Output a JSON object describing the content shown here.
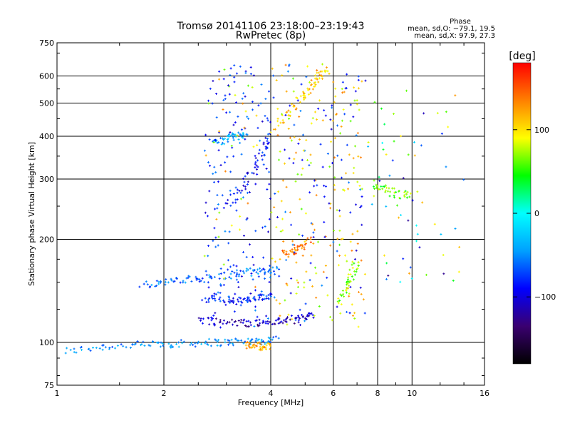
{
  "chart_data": {
    "type": "scatter",
    "title": "Tromsø 20141106 23:18:00–23:19:43",
    "subtitle": "RwPretec (8p)",
    "xlabel": "Frequency [MHz]",
    "ylabel": "Stationary phase Virtual Height [km]",
    "x_scale": "log",
    "y_scale": "log",
    "xlim": [
      1,
      16
    ],
    "ylim": [
      75,
      750
    ],
    "x_ticks": [
      1,
      2,
      4,
      6,
      8,
      10,
      16
    ],
    "x_tick_labels": [
      "1",
      "2",
      "4",
      "6",
      "8",
      "10",
      "16"
    ],
    "x_gridlines": [
      2,
      4,
      6,
      8,
      10
    ],
    "y_ticks": [
      75,
      100,
      200,
      300,
      400,
      500,
      600,
      750
    ],
    "y_tick_labels": [
      "75",
      "100",
      "200",
      "300",
      "400",
      "500",
      "600",
      "750"
    ],
    "y_gridlines": [
      100,
      200,
      300,
      400,
      500,
      600
    ],
    "grid": true,
    "phase_header": "Phase",
    "stats": [
      "mean, sd,O: −79.1, 19.5",
      "mean, sd,X:  97.9, 27.3"
    ],
    "colorbar": {
      "label": "[deg]",
      "range": [
        -180,
        180
      ],
      "ticks": [
        100,
        0,
        -100
      ],
      "tick_labels": [
        "100",
        "0",
        "−100"
      ],
      "colormap": [
        "#000000",
        "#3a0070",
        "#0000ff",
        "#00a0ff",
        "#00ffff",
        "#00ff00",
        "#ffff00",
        "#ff8000",
        "#ff0000"
      ]
    },
    "o_mode_mean_phase": -79.1,
    "o_mode_sd_phase": 19.5,
    "x_mode_mean_phase": 97.9,
    "x_mode_sd_phase": 27.3,
    "traces": [
      {
        "mode": "O",
        "x": [
          1.05,
          1.3,
          1.6,
          1.9,
          2.2,
          2.6,
          3.0,
          3.4,
          3.8,
          4.2
        ],
        "y": [
          94,
          97,
          98,
          99,
          99,
          100,
          100,
          101,
          101,
          102
        ],
        "phase": -50
      },
      {
        "mode": "O",
        "x": [
          1.75,
          2.0,
          2.3,
          2.6,
          3.0,
          3.4,
          3.8,
          4.2
        ],
        "y": [
          148,
          150,
          152,
          154,
          157,
          160,
          162,
          165
        ],
        "phase": -60
      },
      {
        "mode": "O",
        "x": [
          2.5,
          2.9,
          3.3,
          3.7,
          4.1,
          4.5,
          4.9,
          5.3
        ],
        "y": [
          117,
          115,
          114,
          114,
          115,
          116,
          118,
          121
        ],
        "phase": -110
      },
      {
        "mode": "O",
        "x": [
          2.6,
          2.9,
          3.2,
          3.5,
          3.8,
          4.0
        ],
        "y": [
          135,
          133,
          132,
          133,
          135,
          138
        ],
        "phase": -80
      },
      {
        "mode": "O",
        "x": [
          3.0,
          3.3,
          3.6,
          3.8,
          4.0
        ],
        "y": [
          250,
          280,
          320,
          360,
          400
        ],
        "phase": -90
      },
      {
        "mode": "O",
        "x": [
          2.8,
          3.0,
          3.2,
          3.4
        ],
        "y": [
          380,
          395,
          400,
          400
        ],
        "phase": -40
      },
      {
        "mode": "X",
        "x": [
          4.1,
          4.5,
          4.9,
          5.2,
          5.5,
          5.8
        ],
        "y": [
          420,
          470,
          520,
          560,
          600,
          630
        ],
        "phase": 110
      },
      {
        "mode": "X",
        "x": [
          4.3,
          4.6,
          4.9,
          5.2
        ],
        "y": [
          180,
          185,
          190,
          200
        ],
        "phase": 140
      },
      {
        "mode": "X",
        "x": [
          3.4,
          3.6,
          3.8,
          4.0
        ],
        "y": [
          98,
          98,
          97,
          97
        ],
        "phase": 120
      },
      {
        "mode": "X",
        "x": [
          6.3,
          6.5,
          6.8,
          7.0
        ],
        "y": [
          130,
          145,
          160,
          170
        ],
        "phase": 70
      },
      {
        "mode": "X",
        "x": [
          7.8,
          8.4,
          9.2,
          10.2
        ],
        "y": [
          290,
          280,
          270,
          270
        ],
        "phase": 60
      }
    ]
  }
}
